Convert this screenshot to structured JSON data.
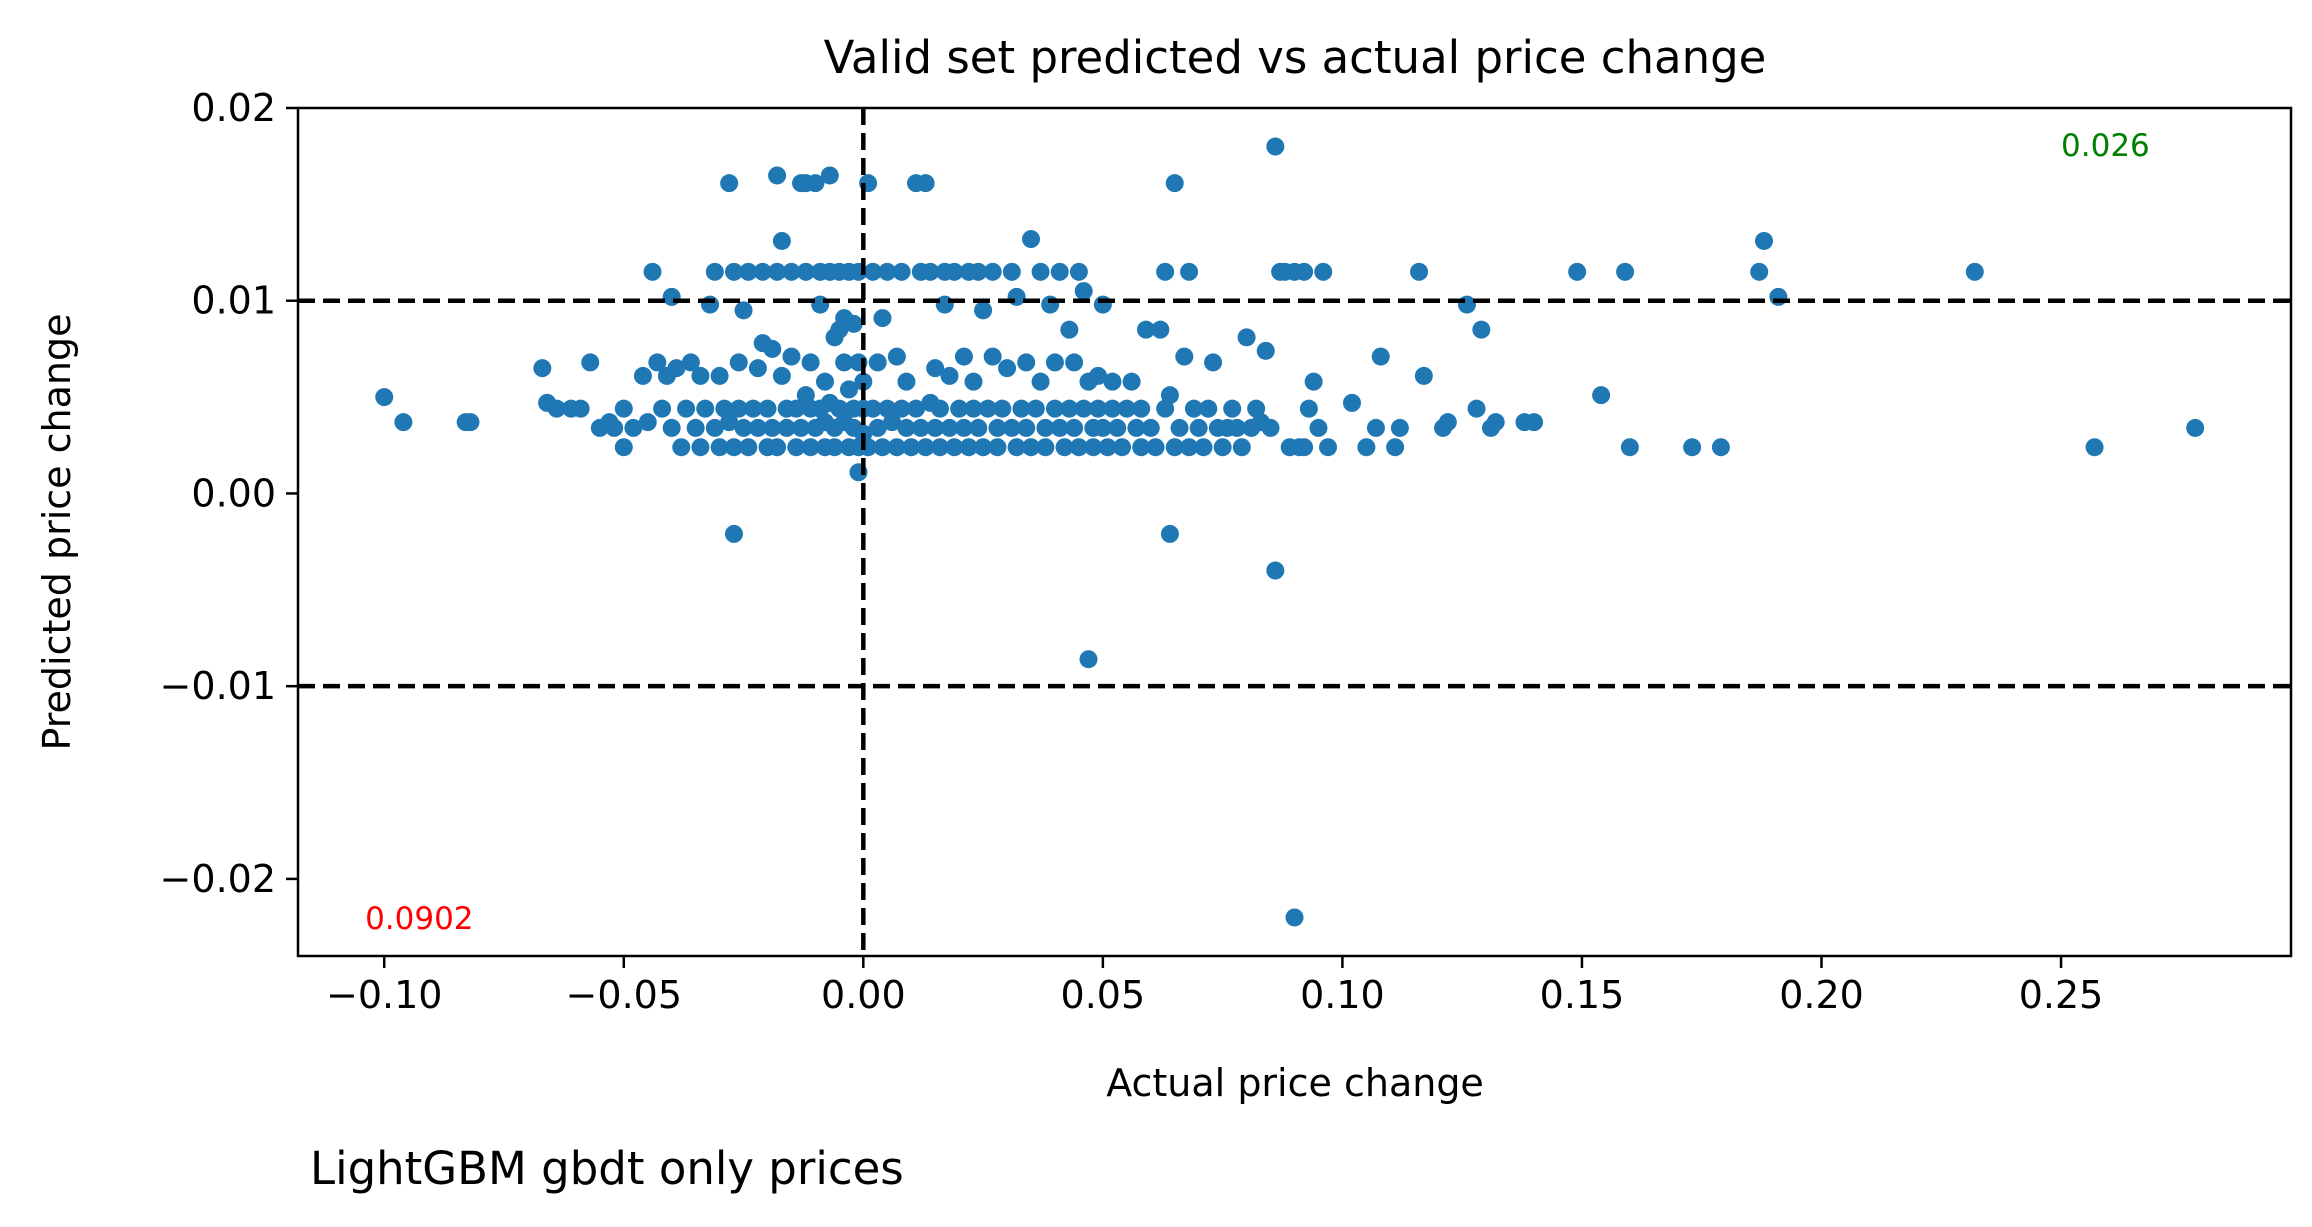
{
  "chart_data": {
    "type": "scatter",
    "title": "Valid set predicted vs actual price change",
    "xlabel": "Actual price change",
    "ylabel": "Predicted price change",
    "xlim": [
      -0.118,
      0.298
    ],
    "ylim": [
      -0.024,
      0.02
    ],
    "xticks": [
      -0.1,
      -0.05,
      0.0,
      0.05,
      0.1,
      0.15,
      0.2,
      0.25
    ],
    "xtick_labels": [
      "−0.10",
      "−0.05",
      "0.00",
      "0.05",
      "0.10",
      "0.15",
      "0.20",
      "0.25"
    ],
    "yticks": [
      0.02,
      0.01,
      0.0,
      -0.01,
      -0.02
    ],
    "ytick_labels": [
      "0.02",
      "0.01",
      "0.00",
      "−0.01",
      "−0.02"
    ],
    "grid": false,
    "marker_color": "#1f77b4",
    "reference_lines": {
      "horizontal": [
        0.01,
        -0.01
      ],
      "vertical": [
        0.0
      ],
      "style": "dashed",
      "color": "#000000"
    },
    "annotations": [
      {
        "text": "0.026",
        "x": 0.25,
        "y": 0.0175,
        "color": "#008000"
      },
      {
        "text": "0.0902",
        "x": -0.104,
        "y": -0.0226,
        "color": "#ff0000"
      }
    ],
    "points": [
      [
        -0.1,
        0.005
      ],
      [
        -0.096,
        0.0037
      ],
      [
        -0.083,
        0.0037
      ],
      [
        -0.082,
        0.0037
      ],
      [
        -0.067,
        0.0065
      ],
      [
        -0.066,
        0.0047
      ],
      [
        -0.064,
        0.0044
      ],
      [
        -0.061,
        0.0044
      ],
      [
        -0.059,
        0.0044
      ],
      [
        -0.057,
        0.0068
      ],
      [
        -0.055,
        0.0034
      ],
      [
        -0.053,
        0.0037
      ],
      [
        -0.052,
        0.0034
      ],
      [
        -0.05,
        0.0044
      ],
      [
        -0.05,
        0.0024
      ],
      [
        -0.048,
        0.0034
      ],
      [
        -0.046,
        0.0061
      ],
      [
        -0.045,
        0.0037
      ],
      [
        -0.044,
        0.0115
      ],
      [
        -0.043,
        0.0068
      ],
      [
        -0.042,
        0.0044
      ],
      [
        -0.041,
        0.0061
      ],
      [
        -0.04,
        0.0034
      ],
      [
        -0.04,
        0.0102
      ],
      [
        -0.039,
        0.0065
      ],
      [
        -0.038,
        0.0024
      ],
      [
        -0.037,
        0.0044
      ],
      [
        -0.036,
        0.0068
      ],
      [
        -0.035,
        0.0034
      ],
      [
        -0.034,
        0.0024
      ],
      [
        -0.034,
        0.0061
      ],
      [
        -0.033,
        0.0044
      ],
      [
        -0.032,
        0.0098
      ],
      [
        -0.031,
        0.0115
      ],
      [
        -0.031,
        0.0034
      ],
      [
        -0.03,
        0.0024
      ],
      [
        -0.03,
        0.0061
      ],
      [
        -0.029,
        0.0044
      ],
      [
        -0.028,
        0.0037
      ],
      [
        -0.028,
        0.0161
      ],
      [
        -0.027,
        0.0115
      ],
      [
        -0.027,
        0.0024
      ],
      [
        -0.027,
        -0.0021
      ],
      [
        -0.026,
        0.0068
      ],
      [
        -0.026,
        0.0044
      ],
      [
        -0.025,
        0.0034
      ],
      [
        -0.025,
        0.0095
      ],
      [
        -0.024,
        0.0115
      ],
      [
        -0.024,
        0.0024
      ],
      [
        -0.023,
        0.0044
      ],
      [
        -0.022,
        0.0065
      ],
      [
        -0.022,
        0.0034
      ],
      [
        -0.021,
        0.0078
      ],
      [
        -0.021,
        0.0115
      ],
      [
        -0.02,
        0.0024
      ],
      [
        -0.02,
        0.0044
      ],
      [
        -0.019,
        0.0075
      ],
      [
        -0.019,
        0.0034
      ],
      [
        -0.018,
        0.0115
      ],
      [
        -0.018,
        0.0165
      ],
      [
        -0.018,
        0.0024
      ],
      [
        -0.017,
        0.0131
      ],
      [
        -0.017,
        0.0061
      ],
      [
        -0.016,
        0.0044
      ],
      [
        -0.016,
        0.0034
      ],
      [
        -0.015,
        0.0115
      ],
      [
        -0.015,
        0.0071
      ],
      [
        -0.014,
        0.0024
      ],
      [
        -0.014,
        0.0044
      ],
      [
        -0.013,
        0.0161
      ],
      [
        -0.013,
        0.0034
      ],
      [
        -0.012,
        0.0115
      ],
      [
        -0.012,
        0.0051
      ],
      [
        -0.012,
        0.0161
      ],
      [
        -0.011,
        0.0024
      ],
      [
        -0.011,
        0.0044
      ],
      [
        -0.011,
        0.0068
      ],
      [
        -0.01,
        0.0161
      ],
      [
        -0.01,
        0.0034
      ],
      [
        -0.009,
        0.0115
      ],
      [
        -0.009,
        0.0044
      ],
      [
        -0.009,
        0.0098
      ],
      [
        -0.008,
        0.0024
      ],
      [
        -0.008,
        0.0058
      ],
      [
        -0.008,
        0.0037
      ],
      [
        -0.007,
        0.0165
      ],
      [
        -0.007,
        0.0115
      ],
      [
        -0.007,
        0.0047
      ],
      [
        -0.006,
        0.0081
      ],
      [
        -0.006,
        0.0034
      ],
      [
        -0.006,
        0.0024
      ],
      [
        -0.005,
        0.0085
      ],
      [
        -0.005,
        0.0044
      ],
      [
        -0.005,
        0.0115
      ],
      [
        -0.004,
        0.0068
      ],
      [
        -0.004,
        0.0091
      ],
      [
        -0.004,
        0.0037
      ],
      [
        -0.003,
        0.0024
      ],
      [
        -0.003,
        0.0054
      ],
      [
        -0.003,
        0.0115
      ],
      [
        -0.002,
        0.0044
      ],
      [
        -0.002,
        0.0088
      ],
      [
        -0.002,
        0.0034
      ],
      [
        -0.001,
        0.0024
      ],
      [
        -0.001,
        0.0068
      ],
      [
        -0.001,
        0.0115
      ],
      [
        0.0,
        0.0044
      ],
      [
        0.0,
        0.0031
      ],
      [
        0.0,
        0.0058
      ],
      [
        -0.001,
        0.0011
      ],
      [
        0.001,
        0.0161
      ],
      [
        0.001,
        0.0024
      ],
      [
        0.002,
        0.0115
      ],
      [
        0.002,
        0.0044
      ],
      [
        0.003,
        0.0034
      ],
      [
        0.003,
        0.0068
      ],
      [
        0.004,
        0.0024
      ],
      [
        0.004,
        0.0091
      ],
      [
        0.005,
        0.0115
      ],
      [
        0.005,
        0.0044
      ],
      [
        0.006,
        0.0037
      ],
      [
        0.007,
        0.0024
      ],
      [
        0.007,
        0.0071
      ],
      [
        0.008,
        0.0115
      ],
      [
        0.008,
        0.0044
      ],
      [
        0.009,
        0.0034
      ],
      [
        0.009,
        0.0058
      ],
      [
        0.01,
        0.0024
      ],
      [
        0.011,
        0.0161
      ],
      [
        0.011,
        0.0044
      ],
      [
        0.012,
        0.0115
      ],
      [
        0.012,
        0.0034
      ],
      [
        0.013,
        0.0024
      ],
      [
        0.013,
        0.0161
      ],
      [
        0.014,
        0.0047
      ],
      [
        0.014,
        0.0115
      ],
      [
        0.015,
        0.0065
      ],
      [
        0.015,
        0.0034
      ],
      [
        0.016,
        0.0024
      ],
      [
        0.016,
        0.0044
      ],
      [
        0.017,
        0.0115
      ],
      [
        0.017,
        0.0098
      ],
      [
        0.018,
        0.0034
      ],
      [
        0.018,
        0.0061
      ],
      [
        0.019,
        0.0024
      ],
      [
        0.019,
        0.0115
      ],
      [
        0.02,
        0.0044
      ],
      [
        0.021,
        0.0071
      ],
      [
        0.021,
        0.0034
      ],
      [
        0.022,
        0.0115
      ],
      [
        0.022,
        0.0024
      ],
      [
        0.023,
        0.0044
      ],
      [
        0.023,
        0.0058
      ],
      [
        0.024,
        0.0115
      ],
      [
        0.024,
        0.0034
      ],
      [
        0.025,
        0.0095
      ],
      [
        0.025,
        0.0024
      ],
      [
        0.026,
        0.0044
      ],
      [
        0.027,
        0.0071
      ],
      [
        0.027,
        0.0115
      ],
      [
        0.028,
        0.0034
      ],
      [
        0.028,
        0.0024
      ],
      [
        0.029,
        0.0044
      ],
      [
        0.03,
        0.0065
      ],
      [
        0.031,
        0.0115
      ],
      [
        0.031,
        0.0034
      ],
      [
        0.032,
        0.0024
      ],
      [
        0.032,
        0.0102
      ],
      [
        0.033,
        0.0044
      ],
      [
        0.034,
        0.0068
      ],
      [
        0.034,
        0.0034
      ],
      [
        0.035,
        0.0132
      ],
      [
        0.035,
        0.0024
      ],
      [
        0.036,
        0.0044
      ],
      [
        0.037,
        0.0115
      ],
      [
        0.037,
        0.0058
      ],
      [
        0.038,
        0.0034
      ],
      [
        0.038,
        0.0024
      ],
      [
        0.039,
        0.0098
      ],
      [
        0.04,
        0.0044
      ],
      [
        0.04,
        0.0068
      ],
      [
        0.041,
        0.0115
      ],
      [
        0.041,
        0.0034
      ],
      [
        0.042,
        0.0024
      ],
      [
        0.043,
        0.0044
      ],
      [
        0.043,
        0.0085
      ],
      [
        0.044,
        0.0068
      ],
      [
        0.044,
        0.0034
      ],
      [
        0.045,
        0.0115
      ],
      [
        0.045,
        0.0024
      ],
      [
        0.046,
        0.0044
      ],
      [
        0.046,
        0.0105
      ],
      [
        0.047,
        0.0058
      ],
      [
        0.047,
        -0.0086
      ],
      [
        0.048,
        0.0034
      ],
      [
        0.048,
        0.0024
      ],
      [
        0.049,
        0.0061
      ],
      [
        0.049,
        0.0044
      ],
      [
        0.05,
        0.0098
      ],
      [
        0.05,
        0.0034
      ],
      [
        0.051,
        0.0024
      ],
      [
        0.052,
        0.0044
      ],
      [
        0.052,
        0.0058
      ],
      [
        0.053,
        0.0034
      ],
      [
        0.054,
        0.0024
      ],
      [
        0.055,
        0.0044
      ],
      [
        0.056,
        0.0058
      ],
      [
        0.057,
        0.0034
      ],
      [
        0.058,
        0.0024
      ],
      [
        0.058,
        0.0044
      ],
      [
        0.059,
        0.0085
      ],
      [
        0.06,
        0.0034
      ],
      [
        0.061,
        0.0024
      ],
      [
        0.062,
        0.0085
      ],
      [
        0.063,
        0.0044
      ],
      [
        0.063,
        0.0115
      ],
      [
        0.064,
        0.0051
      ],
      [
        0.064,
        -0.0021
      ],
      [
        0.065,
        0.0024
      ],
      [
        0.065,
        0.0161
      ],
      [
        0.066,
        0.0034
      ],
      [
        0.067,
        0.0071
      ],
      [
        0.068,
        0.0024
      ],
      [
        0.068,
        0.0115
      ],
      [
        0.069,
        0.0044
      ],
      [
        0.07,
        0.0034
      ],
      [
        0.071,
        0.0024
      ],
      [
        0.072,
        0.0044
      ],
      [
        0.073,
        0.0068
      ],
      [
        0.074,
        0.0034
      ],
      [
        0.075,
        0.0024
      ],
      [
        0.076,
        0.0034
      ],
      [
        0.077,
        0.0044
      ],
      [
        0.078,
        0.0034
      ],
      [
        0.079,
        0.0024
      ],
      [
        0.08,
        0.0081
      ],
      [
        0.081,
        0.0034
      ],
      [
        0.082,
        0.0044
      ],
      [
        0.083,
        0.0037
      ],
      [
        0.084,
        0.0074
      ],
      [
        0.085,
        0.0034
      ],
      [
        0.086,
        0.018
      ],
      [
        0.086,
        -0.004
      ],
      [
        0.087,
        0.0115
      ],
      [
        0.088,
        0.0115
      ],
      [
        0.089,
        0.0024
      ],
      [
        0.09,
        0.0115
      ],
      [
        0.09,
        -0.022
      ],
      [
        0.091,
        0.0024
      ],
      [
        0.092,
        0.0115
      ],
      [
        0.092,
        0.0024
      ],
      [
        0.093,
        0.0044
      ],
      [
        0.094,
        0.0058
      ],
      [
        0.095,
        0.0034
      ],
      [
        0.096,
        0.0115
      ],
      [
        0.097,
        0.0024
      ],
      [
        0.102,
        0.0047
      ],
      [
        0.105,
        0.0024
      ],
      [
        0.107,
        0.0034
      ],
      [
        0.108,
        0.0071
      ],
      [
        0.111,
        0.0024
      ],
      [
        0.112,
        0.0034
      ],
      [
        0.116,
        0.0115
      ],
      [
        0.117,
        0.0061
      ],
      [
        0.121,
        0.0034
      ],
      [
        0.122,
        0.0037
      ],
      [
        0.126,
        0.0098
      ],
      [
        0.128,
        0.0044
      ],
      [
        0.129,
        0.0085
      ],
      [
        0.131,
        0.0034
      ],
      [
        0.132,
        0.0037
      ],
      [
        0.138,
        0.0037
      ],
      [
        0.14,
        0.0037
      ],
      [
        0.149,
        0.0115
      ],
      [
        0.154,
        0.0051
      ],
      [
        0.159,
        0.0115
      ],
      [
        0.16,
        0.0024
      ],
      [
        0.173,
        0.0024
      ],
      [
        0.179,
        0.0024
      ],
      [
        0.187,
        0.0115
      ],
      [
        0.188,
        0.0131
      ],
      [
        0.191,
        0.0102
      ],
      [
        0.232,
        0.0115
      ],
      [
        0.257,
        0.0024
      ],
      [
        0.278,
        0.0034
      ]
    ]
  },
  "caption": "LightGBM gbdt only prices"
}
